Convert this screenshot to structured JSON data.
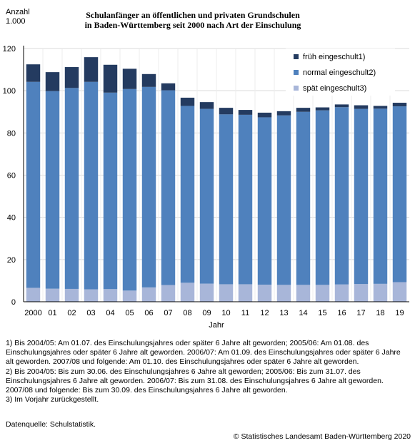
{
  "header": {
    "unit_line1": "Anzahl",
    "unit_line2": "1.000",
    "title_line1": "Schulanfänger an öffentlichen und privaten Grundschulen",
    "title_line2": "in Baden-Württemberg seit 2000 nach Art der Einschulung"
  },
  "chart_data": {
    "type": "bar",
    "stacked": true,
    "title": "Schulanfänger an öffentlichen und privaten Grundschulen in Baden-Württemberg seit 2000 nach Art der Einschulung",
    "xlabel": "Jahr",
    "ylabel": "Anzahl 1.000",
    "ylim": [
      0,
      120
    ],
    "yticks": [
      0,
      20,
      40,
      60,
      80,
      100,
      120
    ],
    "grid": true,
    "legend_position": "top-right",
    "categories": [
      "2000",
      "01",
      "02",
      "03",
      "04",
      "05",
      "06",
      "07",
      "08",
      "09",
      "10",
      "11",
      "12",
      "13",
      "14",
      "15",
      "16",
      "17",
      "18",
      "19"
    ],
    "series": [
      {
        "name": "spät eingeschult3)",
        "color": "#a8b6d9",
        "values": [
          6.6,
          6.2,
          6.1,
          5.9,
          6.0,
          5.3,
          6.8,
          7.9,
          9.0,
          8.6,
          8.3,
          8.3,
          8.1,
          8.0,
          8.0,
          8.0,
          8.2,
          8.4,
          8.5,
          9.3
        ]
      },
      {
        "name": "normal eingeschult2)",
        "color": "#4f81bd",
        "values": [
          97.6,
          93.6,
          95.2,
          98.3,
          93.1,
          95.5,
          95.0,
          92.3,
          83.8,
          82.8,
          80.5,
          80.3,
          79.3,
          80.3,
          82.0,
          82.7,
          84.0,
          83.0,
          83.0,
          83.3
        ]
      },
      {
        "name": "früh eingeschult1)",
        "color": "#243b60",
        "values": [
          8.3,
          9.0,
          9.9,
          11.7,
          13.2,
          9.6,
          6.1,
          3.3,
          3.9,
          3.2,
          3.1,
          2.3,
          2.2,
          2.0,
          1.9,
          1.4,
          1.3,
          1.7,
          1.3,
          1.7
        ]
      }
    ]
  },
  "footnotes": [
    "1) Bis 2004/05: Am 01.07. des Einschulungsjahres oder später 6 Jahre alt geworden; 2005/06: Am 01.08. des Einschulungsjahres oder später 6 Jahre alt geworden. 2006/07: Am 01.09. des Einschulungsjahres oder später 6 Jahre alt geworden. 2007/08 und folgende: Am 01.10. des Einschulungsjahres oder später 6 Jahre alt geworden.",
    "2) Bis 2004/05: Bis zum 30.06. des Einschulungsjahres 6 Jahre alt geworden; 2005/06: Bis zum 31.07. des Einschulungsjahres 6 Jahre alt geworden. 2006/07: Bis zum 31.08. des Einschulungsjahres 6 Jahre alt geworden. 2007/08 und folgende: Bis zum 30.09. des Einschulungsjahres 6 Jahre alt geworden.",
    "3) Im Vorjahr zurückgestellt."
  ],
  "source": "Datenquelle: Schulstatistik.",
  "copyright": "© Statistisches Landesamt Baden-Württemberg 2020"
}
